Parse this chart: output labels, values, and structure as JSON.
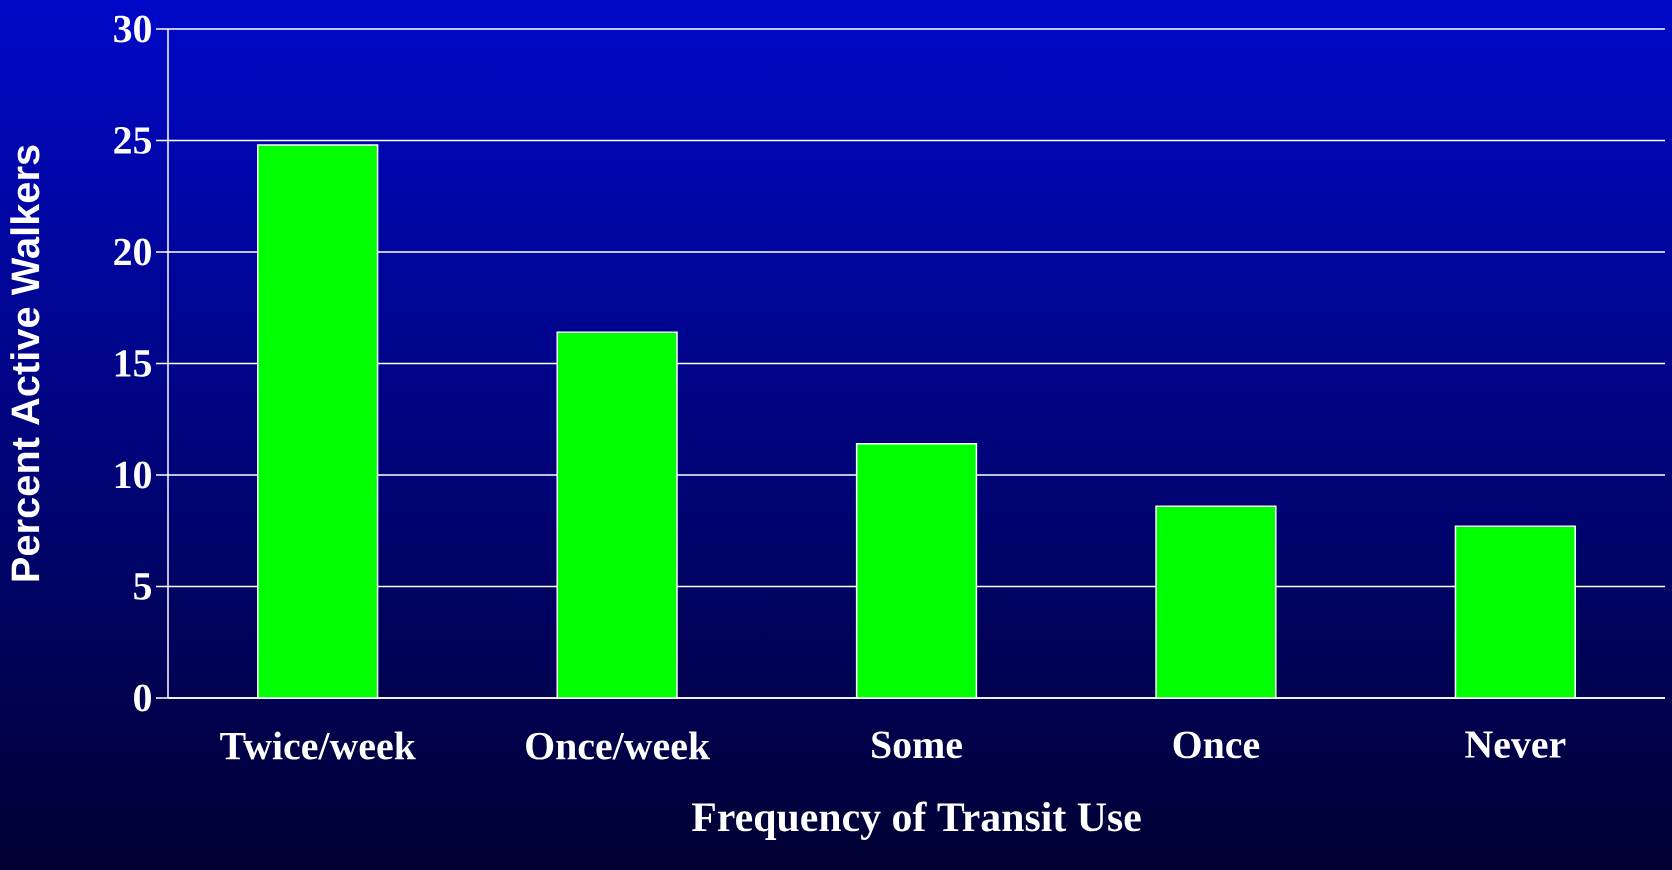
{
  "chart_data": {
    "type": "bar",
    "xlabel": "Frequency of Transit Use",
    "ylabel": "Percent Active Walkers",
    "categories": [
      "Twice/week",
      "Once/week",
      "Some",
      "Once",
      "Never"
    ],
    "values": [
      24.8,
      16.4,
      11.4,
      8.6,
      7.7
    ],
    "color": "#00ff00",
    "ylim": [
      0,
      30
    ],
    "yticks": [
      0,
      5,
      10,
      15,
      20,
      25,
      30
    ],
    "grid": "y"
  }
}
